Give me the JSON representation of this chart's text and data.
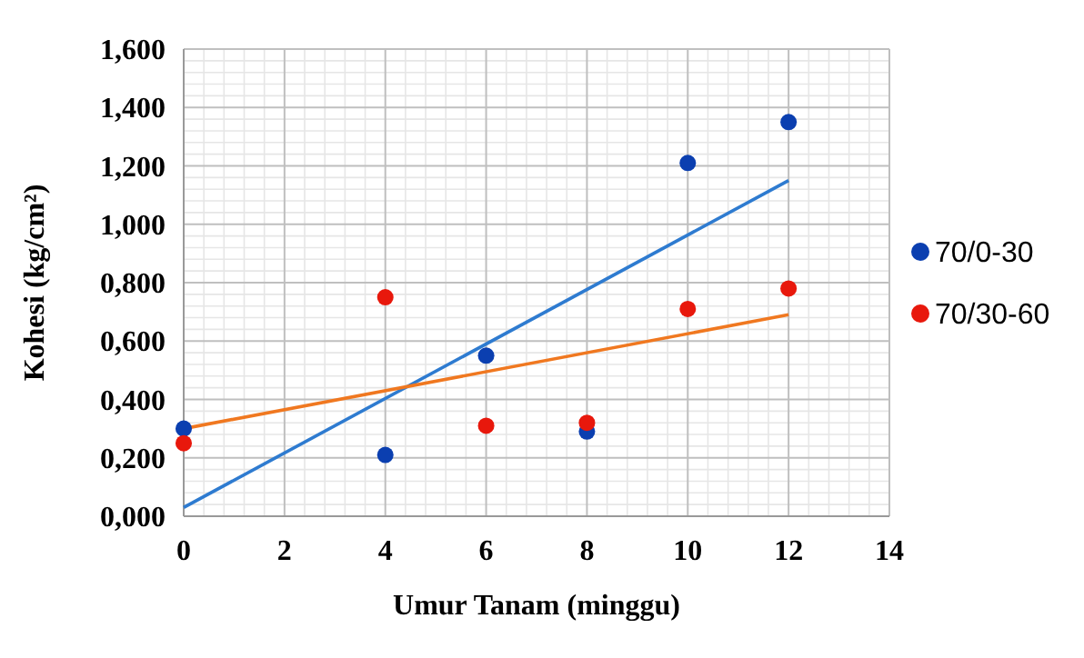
{
  "chart_data": {
    "type": "scatter",
    "xlabel": "Umur Tanam (minggu)",
    "ylabel": "Kohesi (kg/cm²)",
    "xlim": [
      0,
      14
    ],
    "xticks": [
      0,
      2,
      4,
      6,
      8,
      10,
      12,
      14
    ],
    "ylim": [
      0,
      1.6
    ],
    "yticks": [
      {
        "value": 0,
        "label": "0,000"
      },
      {
        "value": 0.2,
        "label": "0,200"
      },
      {
        "value": 0.4,
        "label": "0,400"
      },
      {
        "value": 0.6,
        "label": "0,600"
      },
      {
        "value": 0.8,
        "label": "0,800"
      },
      {
        "value": 1,
        "label": "1,000"
      },
      {
        "value": 1.2,
        "label": "1,200"
      },
      {
        "value": 1.4,
        "label": "1,400"
      },
      {
        "value": 1.6,
        "label": "1,600"
      }
    ],
    "grid": true,
    "legend": "right",
    "marker": "circle",
    "series": [
      {
        "name": "70/0-30",
        "color": "#0b3fb0",
        "x": [
          0,
          4,
          6,
          8,
          10,
          12
        ],
        "values": [
          0.3,
          0.21,
          0.55,
          0.29,
          1.21,
          1.35
        ]
      },
      {
        "name": "70/30-60",
        "color": "#e8180c",
        "x": [
          0,
          4,
          6,
          8,
          10,
          12
        ],
        "values": [
          0.25,
          0.75,
          0.31,
          0.32,
          0.71,
          0.78
        ]
      },
      {
        "type": "line",
        "color": "#2e7bd0",
        "x": [
          0,
          12
        ],
        "values": [
          0.03,
          1.15
        ],
        "marker": "none",
        "line_style": "solid"
      },
      {
        "type": "line",
        "color": "#f07820",
        "x": [
          0,
          12
        ],
        "values": [
          0.3,
          0.69
        ],
        "marker": "none",
        "line_style": "solid"
      }
    ]
  }
}
